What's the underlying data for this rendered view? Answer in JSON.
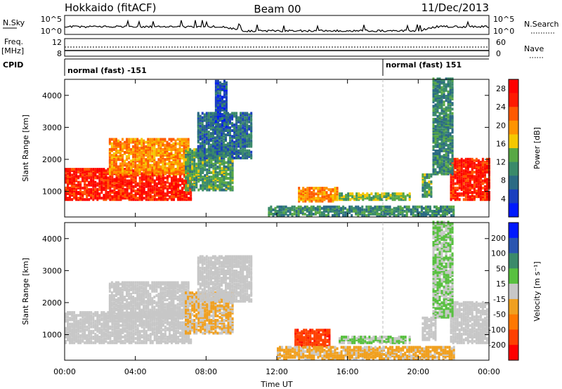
{
  "header": {
    "station": "Hokkaido (fitACF)",
    "beam": "Beam 00",
    "date": "11/Dec/2013"
  },
  "status_panels": {
    "nsky_label": "N.Sky",
    "nsky_ticks": [
      "10^5",
      "10^0"
    ],
    "nsearch_label": "N.Search",
    "nsearch_ticks": [
      "10^5",
      "10^0"
    ],
    "freq_label_1": "Freq.",
    "freq_label_2": "[MHz]",
    "freq_ticks": [
      "12",
      "8"
    ],
    "nave_label": "Nave",
    "nave_ticks": [
      "60",
      "0"
    ],
    "cpid_label": "CPID",
    "cpid_segments": [
      {
        "text": "normal (fast) -151",
        "start_hour": 0,
        "end_hour": 18
      },
      {
        "text": "normal (fast) 151",
        "start_hour": 18,
        "end_hour": 24
      }
    ]
  },
  "colors": {
    "power_scale": [
      "#0019ff",
      "#1a3fbf",
      "#2b6a84",
      "#3a8a6a",
      "#58a845",
      "#f5c800",
      "#ff9400",
      "#ff5a00",
      "#ff1a00",
      "#ff0000"
    ],
    "velocity_scale": [
      "#0019ff",
      "#2a55b0",
      "#3b8a6a",
      "#58c040",
      "#c7c7c7",
      "#f0a020",
      "#ff7800",
      "#ff4000",
      "#ff0000"
    ]
  },
  "chart_data": [
    {
      "type": "heatmap",
      "title": "",
      "xlabel": "",
      "ylabel": "Slant Range [km]",
      "xlim": [
        0,
        24
      ],
      "ylim": [
        200,
        4500
      ],
      "x_ticks": [
        "00:00",
        "04:00",
        "08:00",
        "12:00",
        "16:00",
        "20:00",
        "00:00"
      ],
      "y_ticks": [
        1000,
        2000,
        3000,
        4000
      ],
      "colorbar": {
        "label": "Power [dB]",
        "ticks": [
          "4",
          "8",
          "12",
          "16",
          "20",
          "24",
          "28"
        ],
        "range": [
          0,
          30
        ]
      },
      "echo_regions": [
        {
          "t0": 0.0,
          "t1": 7.2,
          "r0": 700,
          "r1": 1650,
          "value": 26
        },
        {
          "t0": 2.5,
          "t1": 7.0,
          "r0": 1500,
          "r1": 2600,
          "value": 20
        },
        {
          "t0": 6.8,
          "t1": 9.5,
          "r0": 1000,
          "r1": 2300,
          "value": 12
        },
        {
          "t0": 7.5,
          "t1": 10.5,
          "r0": 2000,
          "r1": 3400,
          "value": 8
        },
        {
          "t0": 8.5,
          "t1": 9.2,
          "r0": 3000,
          "r1": 4400,
          "value": 6
        },
        {
          "t0": 13.2,
          "t1": 15.4,
          "r0": 650,
          "r1": 1100,
          "value": 20
        },
        {
          "t0": 15.5,
          "t1": 19.5,
          "r0": 700,
          "r1": 900,
          "value": 14
        },
        {
          "t0": 11.5,
          "t1": 22.0,
          "r0": 200,
          "r1": 500,
          "value": 10
        },
        {
          "t0": 20.2,
          "t1": 20.8,
          "r0": 800,
          "r1": 1500,
          "value": 12
        },
        {
          "t0": 21.8,
          "t1": 24.0,
          "r0": 700,
          "r1": 2000,
          "value": 26
        },
        {
          "t0": 20.8,
          "t1": 22.0,
          "r0": 1500,
          "r1": 4500,
          "value": 10
        }
      ]
    },
    {
      "type": "heatmap",
      "title": "",
      "xlabel": "Time UT",
      "ylabel": "Slant Range [km]",
      "xlim": [
        0,
        24
      ],
      "ylim": [
        200,
        4500
      ],
      "x_ticks": [
        "00:00",
        "04:00",
        "08:00",
        "12:00",
        "16:00",
        "20:00",
        "00:00"
      ],
      "y_ticks": [
        1000,
        2000,
        3000,
        4000
      ],
      "colorbar": {
        "label": "Velocity [m s⁻¹]",
        "ticks": [
          "200",
          "100",
          "50",
          "15",
          "-15",
          "-50",
          "-100",
          "-200"
        ],
        "range": [
          -250,
          250
        ]
      },
      "echo_regions": [
        {
          "t0": 0.0,
          "t1": 7.2,
          "r0": 700,
          "r1": 1650,
          "value": 0
        },
        {
          "t0": 2.5,
          "t1": 7.0,
          "r0": 1500,
          "r1": 2600,
          "value": 0
        },
        {
          "t0": 6.8,
          "t1": 9.5,
          "r0": 1000,
          "r1": 2300,
          "value": -30
        },
        {
          "t0": 7.5,
          "t1": 10.5,
          "r0": 2000,
          "r1": 3400,
          "value": 0
        },
        {
          "t0": 13.0,
          "t1": 15.0,
          "r0": 600,
          "r1": 1100,
          "value": -180
        },
        {
          "t0": 15.5,
          "t1": 19.5,
          "r0": 700,
          "r1": 900,
          "value": 30
        },
        {
          "t0": 12.0,
          "t1": 22.0,
          "r0": 200,
          "r1": 600,
          "value": -40
        },
        {
          "t0": 20.2,
          "t1": 21.0,
          "r0": 800,
          "r1": 1500,
          "value": 0
        },
        {
          "t0": 21.8,
          "t1": 24.0,
          "r0": 700,
          "r1": 2000,
          "value": 0
        },
        {
          "t0": 20.8,
          "t1": 22.0,
          "r0": 1500,
          "r1": 4500,
          "value": 30
        }
      ]
    }
  ]
}
